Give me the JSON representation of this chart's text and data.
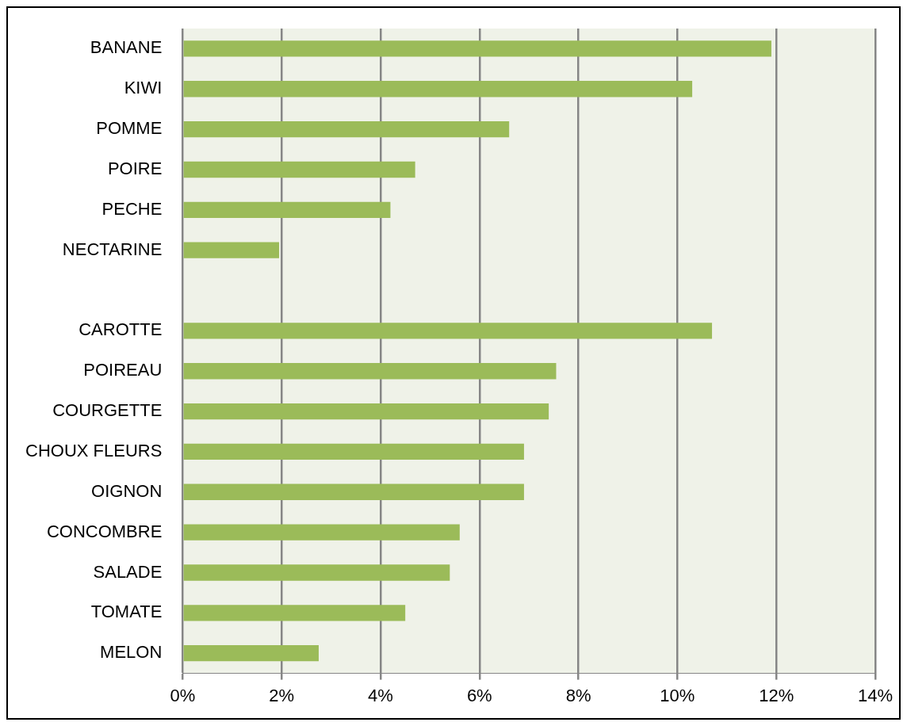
{
  "chart_data": {
    "type": "bar",
    "orientation": "horizontal",
    "categories": [
      "BANANE",
      "KIWI",
      "POMME",
      "POIRE",
      "PECHE",
      "NECTARINE",
      null,
      "CAROTTE",
      "POIREAU",
      "COURGETTE",
      "CHOUX FLEURS",
      "OIGNON",
      "CONCOMBRE",
      "SALADE",
      "TOMATE",
      "MELON"
    ],
    "values": [
      11.9,
      10.3,
      6.6,
      4.7,
      4.2,
      1.95,
      null,
      10.7,
      7.55,
      7.4,
      6.9,
      6.9,
      5.6,
      5.4,
      4.5,
      2.75
    ],
    "color": "#9bbb59",
    "xlim": [
      0,
      14
    ],
    "xticks": [
      {
        "value": 0,
        "label": "0%"
      },
      {
        "value": 2,
        "label": "2%"
      },
      {
        "value": 4,
        "label": "4%"
      },
      {
        "value": 6,
        "label": "6%"
      },
      {
        "value": 8,
        "label": "8%"
      },
      {
        "value": 10,
        "label": "10%"
      },
      {
        "value": 12,
        "label": "12%"
      },
      {
        "value": 14,
        "label": "14%"
      }
    ],
    "grid": "x",
    "legend": false
  }
}
